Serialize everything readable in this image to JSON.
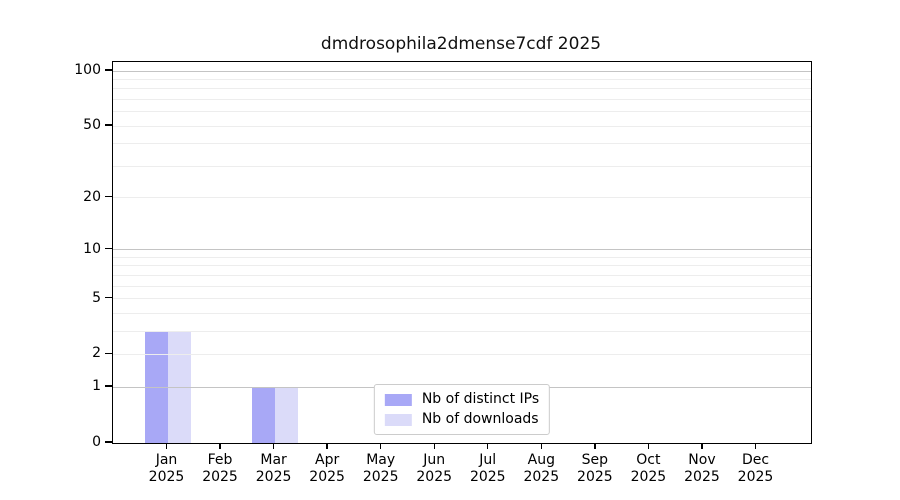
{
  "chart_data": {
    "type": "bar",
    "title": "dmdrosophila2dmense7cdf 2025",
    "categories": [
      {
        "label": "Jan",
        "sub": "2025"
      },
      {
        "label": "Feb",
        "sub": "2025"
      },
      {
        "label": "Mar",
        "sub": "2025"
      },
      {
        "label": "Apr",
        "sub": "2025"
      },
      {
        "label": "May",
        "sub": "2025"
      },
      {
        "label": "Jun",
        "sub": "2025"
      },
      {
        "label": "Jul",
        "sub": "2025"
      },
      {
        "label": "Aug",
        "sub": "2025"
      },
      {
        "label": "Sep",
        "sub": "2025"
      },
      {
        "label": "Oct",
        "sub": "2025"
      },
      {
        "label": "Nov",
        "sub": "2025"
      },
      {
        "label": "Dec",
        "sub": "2025"
      }
    ],
    "series": [
      {
        "name": "Nb of distinct IPs",
        "color": "#a8a8f6",
        "values": [
          3,
          0,
          1,
          0,
          0,
          0,
          0,
          0,
          0,
          0,
          0,
          0
        ]
      },
      {
        "name": "Nb of downloads",
        "color": "#dbdbf9",
        "values": [
          3,
          0,
          1,
          0,
          0,
          0,
          0,
          0,
          0,
          0,
          0,
          0
        ]
      }
    ],
    "y_scale": "log10(1+x)",
    "ylim": [
      0,
      112
    ],
    "y_ticks": [
      {
        "value": 0,
        "label": "0"
      },
      {
        "value": 1,
        "label": "1"
      },
      {
        "value": 2,
        "label": "2"
      },
      {
        "value": 5,
        "label": "5"
      },
      {
        "value": 10,
        "label": "10"
      },
      {
        "value": 20,
        "label": "20"
      },
      {
        "value": 50,
        "label": "50"
      },
      {
        "value": 100,
        "label": "100"
      }
    ],
    "grid": {
      "major_lines": [
        1,
        10,
        100
      ],
      "minor_lines": [
        2,
        3,
        4,
        5,
        6,
        7,
        8,
        9,
        20,
        30,
        40,
        50,
        60,
        70,
        80,
        90
      ],
      "major_color": "#c4c4c4",
      "minor_color": "#ededed"
    },
    "legend_position": "lower center",
    "xlabel": "",
    "ylabel": ""
  }
}
